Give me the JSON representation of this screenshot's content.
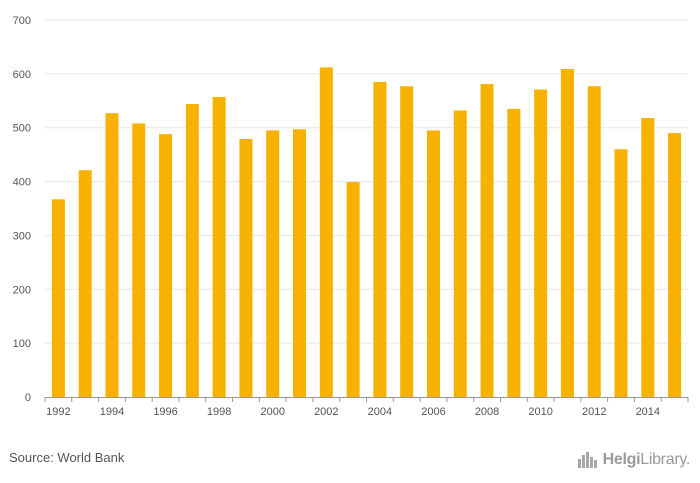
{
  "chart_data": {
    "type": "bar",
    "categories": [
      "1992",
      "1993",
      "1994",
      "1995",
      "1996",
      "1997",
      "1998",
      "1999",
      "2000",
      "2001",
      "2002",
      "2003",
      "2004",
      "2005",
      "2006",
      "2007",
      "2008",
      "2009",
      "2010",
      "2011",
      "2012",
      "2013",
      "2014",
      "2015"
    ],
    "values": [
      367,
      421,
      527,
      508,
      488,
      544,
      557,
      479,
      495,
      497,
      612,
      399,
      585,
      577,
      495,
      532,
      581,
      535,
      571,
      609,
      577,
      460,
      518,
      490
    ],
    "xtick_labels": [
      "1992",
      "1994",
      "1996",
      "1998",
      "2000",
      "2002",
      "2004",
      "2006",
      "2008",
      "2010",
      "2012",
      "2014"
    ],
    "yticks": [
      0,
      100,
      200,
      300,
      400,
      500,
      600,
      700
    ],
    "ylim": [
      0,
      700
    ],
    "grid": true,
    "title": "",
    "xlabel": "",
    "ylabel": "",
    "bar_color": "#F7B100"
  },
  "footer": {
    "source": "Source: World Bank",
    "brand_bold": "Helgi",
    "brand_light": "Library."
  }
}
